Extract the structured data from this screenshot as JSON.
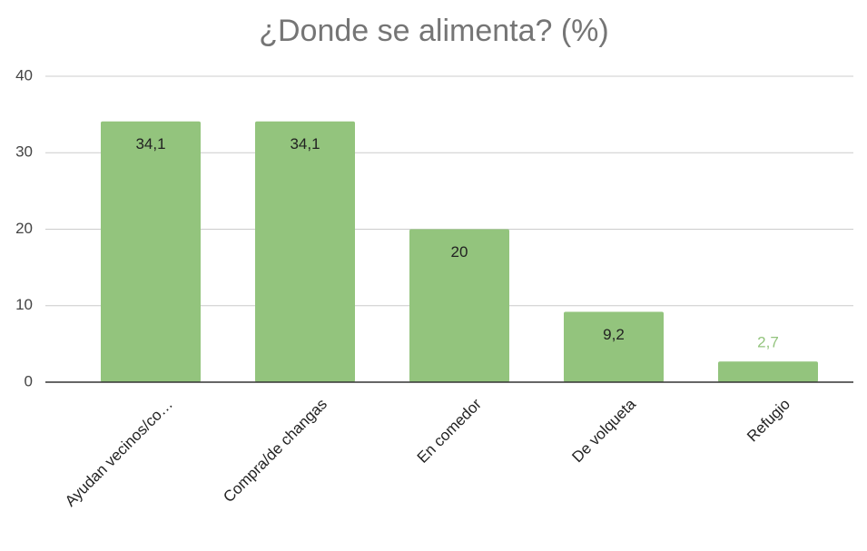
{
  "chart_data": {
    "type": "bar",
    "title": "¿Donde se alimenta? (%)",
    "categories": [
      "Ayudan vecinos/co…",
      "Compra/de changas",
      "En comedor",
      "De volqueta",
      "Refugio"
    ],
    "values": [
      34.1,
      34.1,
      20,
      9.2,
      2.7
    ],
    "value_labels": [
      "34,1",
      "34,1",
      "20",
      "9,2",
      "2,7"
    ],
    "color": "#93c47d",
    "ylim": [
      0,
      40
    ],
    "yticks": [
      0,
      10,
      20,
      30,
      40
    ],
    "grid": true
  }
}
